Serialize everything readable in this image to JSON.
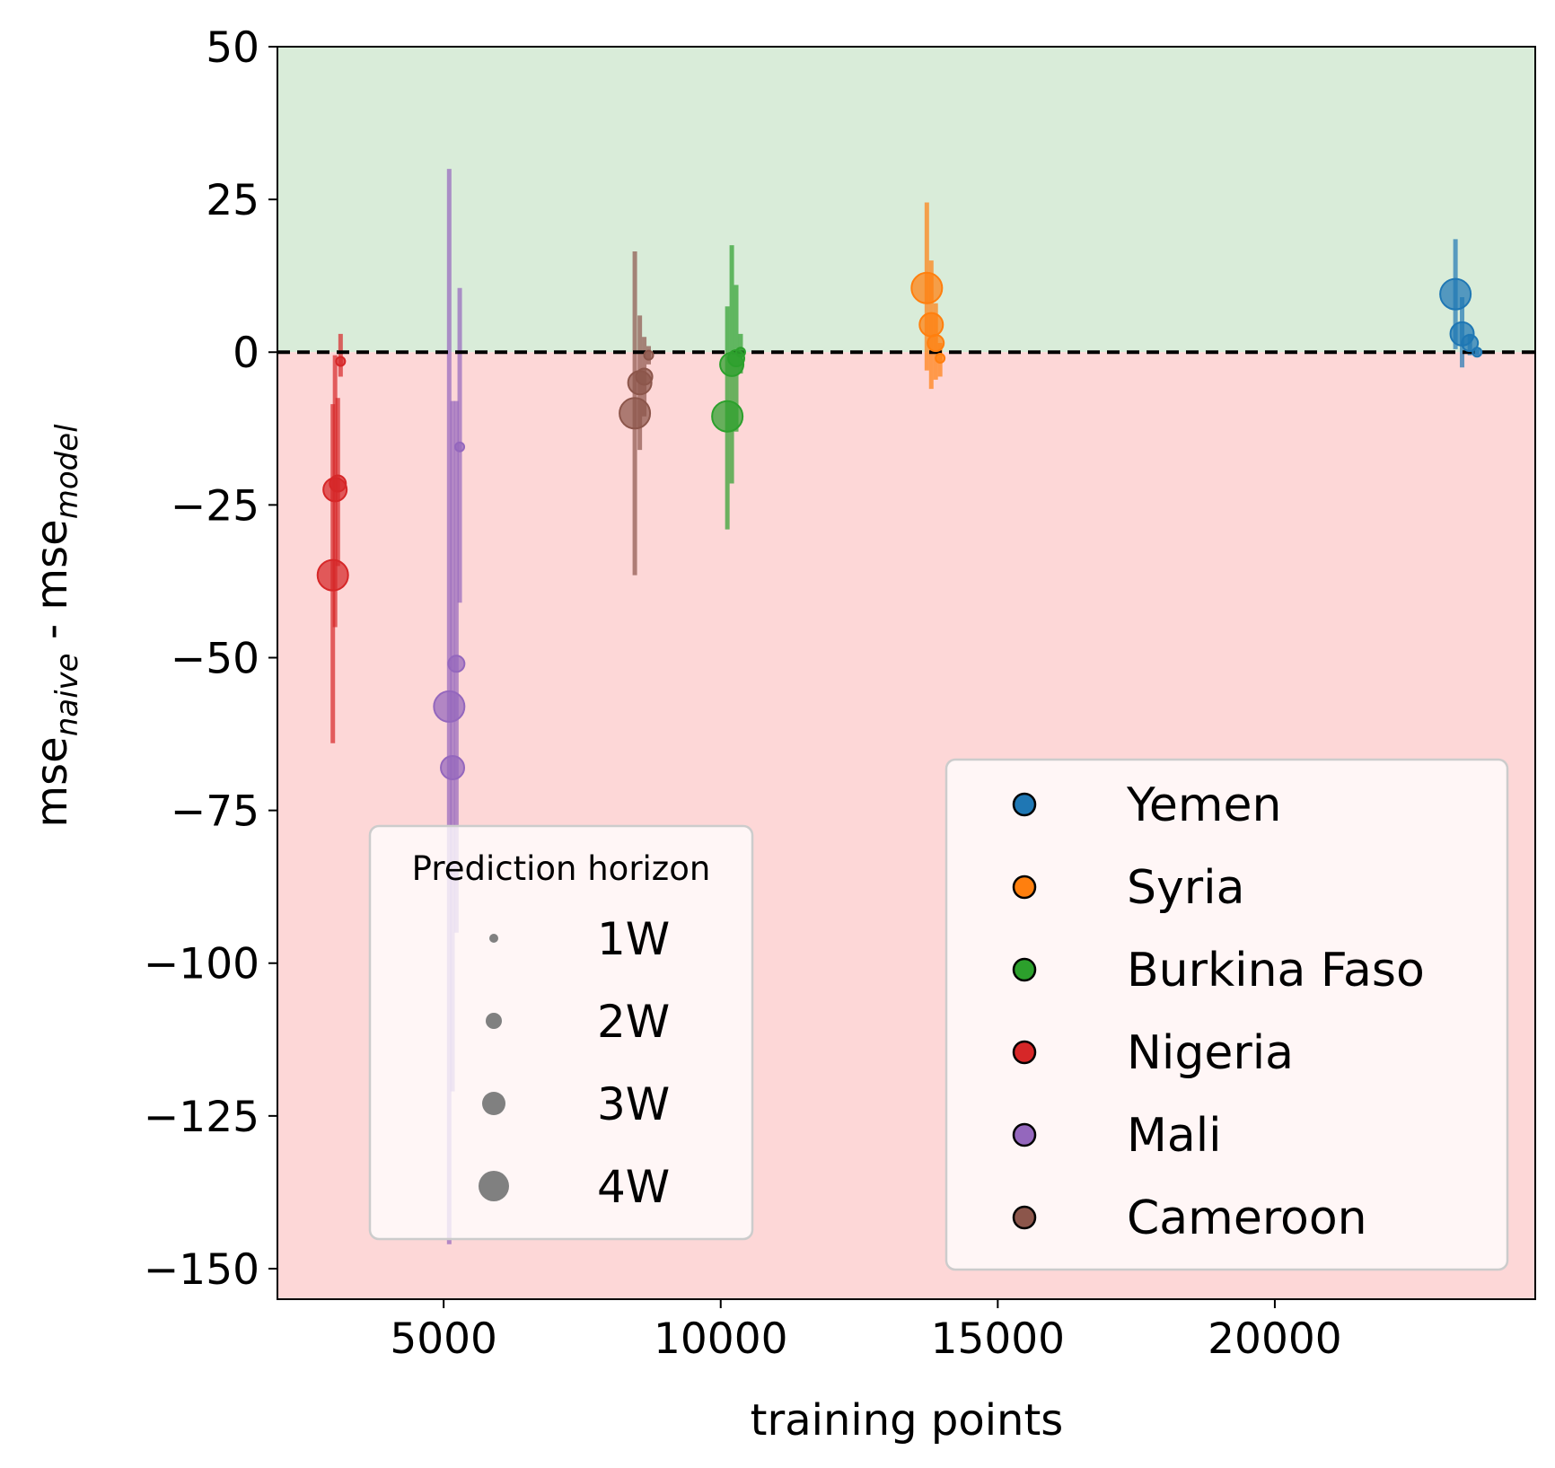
{
  "chart_data": {
    "type": "scatter",
    "xlabel": "training points",
    "ylabel": {
      "base1": "mse",
      "sub1": "naive",
      "mid": " - ",
      "base2": "mse",
      "sub2": "model"
    },
    "xlim": [
      2000,
      24700
    ],
    "ylim": [
      -155,
      50
    ],
    "xticks": [
      5000,
      10000,
      15000,
      20000
    ],
    "xtick_labels": [
      "5000",
      "10000",
      "15000",
      "20000"
    ],
    "yticks": [
      50,
      25,
      0,
      -25,
      -50,
      -75,
      -100,
      -125,
      -150
    ],
    "ytick_labels": [
      "50",
      "25",
      "0",
      "−25",
      "−50",
      "−75",
      "−100",
      "−125",
      "−150"
    ],
    "regions": [
      {
        "from": 0,
        "to": 50,
        "color": "#d9ecd9"
      },
      {
        "from": -155,
        "to": 0,
        "color": "#fdd7d7"
      }
    ],
    "reference_line": {
      "y": 0,
      "style": "dashed",
      "color": "#000000"
    },
    "horizon_sizes": {
      "1W": 5,
      "2W": 9,
      "3W": 13,
      "4W": 17
    },
    "series": [
      {
        "name": "Yemen",
        "color": "#1f77b4",
        "points": [
          {
            "h": "4W",
            "x": 23260,
            "y": 9.5,
            "lo": 0.5,
            "hi": 18.5
          },
          {
            "h": "3W",
            "x": 23380,
            "y": 3.0,
            "lo": -2.5,
            "hi": 9.0
          },
          {
            "h": "2W",
            "x": 23520,
            "y": 1.5,
            "lo": -0.5,
            "hi": 3.0
          },
          {
            "h": "1W",
            "x": 23650,
            "y": 0.0,
            "lo": -0.5,
            "hi": 0.5
          }
        ]
      },
      {
        "name": "Syria",
        "color": "#ff7f0e",
        "points": [
          {
            "h": "4W",
            "x": 13720,
            "y": 10.5,
            "lo": -3.0,
            "hi": 24.5
          },
          {
            "h": "3W",
            "x": 13800,
            "y": 4.5,
            "lo": -6.0,
            "hi": 15.0
          },
          {
            "h": "2W",
            "x": 13880,
            "y": 1.5,
            "lo": -4.5,
            "hi": 8.0
          },
          {
            "h": "1W",
            "x": 13960,
            "y": -1.0,
            "lo": -4.0,
            "hi": 1.5
          }
        ]
      },
      {
        "name": "Burkina Faso",
        "color": "#2ca02c",
        "points": [
          {
            "h": "4W",
            "x": 10120,
            "y": -10.5,
            "lo": -29.0,
            "hi": 7.5
          },
          {
            "h": "3W",
            "x": 10200,
            "y": -2.0,
            "lo": -21.5,
            "hi": 17.5
          },
          {
            "h": "2W",
            "x": 10280,
            "y": -1.0,
            "lo": -13.0,
            "hi": 11.0
          },
          {
            "h": "1W",
            "x": 10360,
            "y": 0.0,
            "lo": -3.5,
            "hi": 3.0
          }
        ]
      },
      {
        "name": "Nigeria",
        "color": "#d62728",
        "points": [
          {
            "h": "4W",
            "x": 3000,
            "y": -36.5,
            "lo": -64.0,
            "hi": -8.5
          },
          {
            "h": "3W",
            "x": 3040,
            "y": -22.5,
            "lo": -45.0,
            "hi": -0.5
          },
          {
            "h": "2W",
            "x": 3090,
            "y": -21.5,
            "lo": -35.0,
            "hi": -7.5
          },
          {
            "h": "1W",
            "x": 3140,
            "y": -1.5,
            "lo": -4.0,
            "hi": 3.0
          }
        ]
      },
      {
        "name": "Mali",
        "color": "#9467bd",
        "points": [
          {
            "h": "4W",
            "x": 5100,
            "y": -58.0,
            "lo": -146.0,
            "hi": 30.0
          },
          {
            "h": "3W",
            "x": 5160,
            "y": -68.0,
            "lo": -121.0,
            "hi": -8.0
          },
          {
            "h": "2W",
            "x": 5230,
            "y": -51.0,
            "lo": -95.0,
            "hi": -8.0
          },
          {
            "h": "1W",
            "x": 5290,
            "y": -15.5,
            "lo": -41.0,
            "hi": 10.5
          }
        ]
      },
      {
        "name": "Cameroon",
        "color": "#8c564b",
        "points": [
          {
            "h": "4W",
            "x": 8450,
            "y": -10.0,
            "lo": -36.5,
            "hi": 16.5
          },
          {
            "h": "3W",
            "x": 8540,
            "y": -5.0,
            "lo": -16.0,
            "hi": 6.0
          },
          {
            "h": "2W",
            "x": 8620,
            "y": -4.0,
            "lo": -10.5,
            "hi": 2.5
          },
          {
            "h": "1W",
            "x": 8700,
            "y": -0.5,
            "lo": -2.0,
            "hi": 1.0
          }
        ]
      }
    ],
    "size_legend": {
      "title": "Prediction horizon",
      "entries": [
        "1W",
        "2W",
        "3W",
        "4W"
      ],
      "placement": "lower-left"
    },
    "color_legend": {
      "entries": [
        "Yemen",
        "Syria",
        "Burkina Faso",
        "Nigeria",
        "Mali",
        "Cameroon"
      ],
      "placement": "lower-right"
    }
  }
}
